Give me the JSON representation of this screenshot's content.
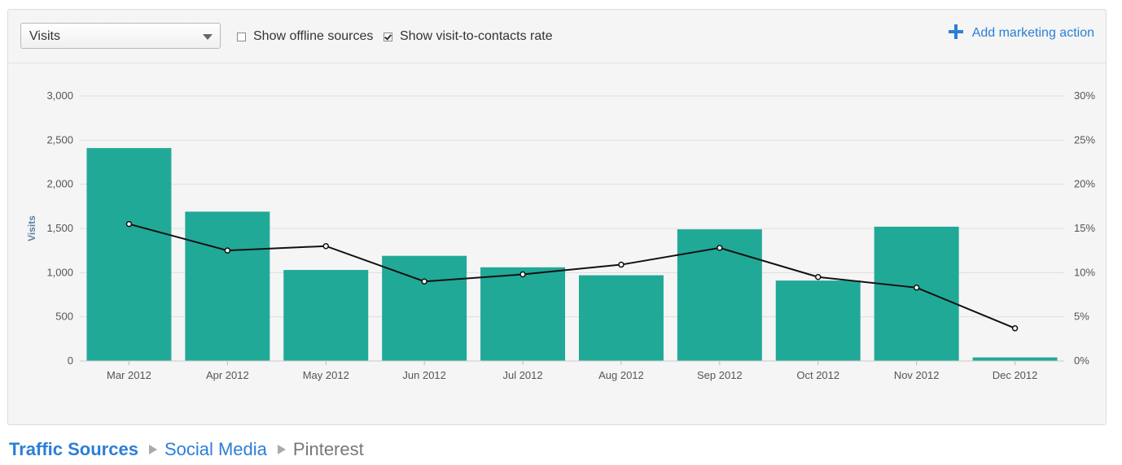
{
  "toolbar": {
    "metric_select_value": "Visits",
    "offline_label": "Show offline sources",
    "offline_checked": false,
    "rate_label": "Show visit-to-contacts rate",
    "rate_checked": true,
    "add_action_label": "Add marketing action"
  },
  "breadcrumb": {
    "items": [
      "Traffic Sources",
      "Social Media"
    ],
    "current": "Pinterest"
  },
  "colors": {
    "bar": "#21a997",
    "line": "#111111",
    "grid": "#dedede",
    "axis_text": "#555555",
    "ylabel": "#5b7fa6",
    "link": "#2b7fd6"
  },
  "chart_data": {
    "type": "bar",
    "categories": [
      "Mar 2012",
      "Apr 2012",
      "May 2012",
      "Jun 2012",
      "Jul 2012",
      "Aug 2012",
      "Sep 2012",
      "Oct 2012",
      "Nov 2012",
      "Dec 2012"
    ],
    "series": [
      {
        "type": "bar",
        "axis": "left",
        "values": [
          2410,
          1690,
          1030,
          1190,
          1060,
          970,
          1490,
          910,
          1520,
          40
        ]
      },
      {
        "type": "line",
        "axis": "right",
        "values": [
          15.5,
          12.5,
          13.0,
          9.0,
          9.8,
          10.9,
          12.8,
          9.5,
          8.3,
          3.7
        ]
      }
    ],
    "ylabel": "Visits",
    "ylim": [
      0,
      3000
    ],
    "yticks": [
      "0",
      "500",
      "1,000",
      "1,500",
      "2,000",
      "2,500",
      "3,000"
    ],
    "y2lim": [
      0,
      30
    ],
    "y2ticks": [
      "0%",
      "5%",
      "10%",
      "15%",
      "20%",
      "25%",
      "30%"
    ],
    "grid": true
  }
}
